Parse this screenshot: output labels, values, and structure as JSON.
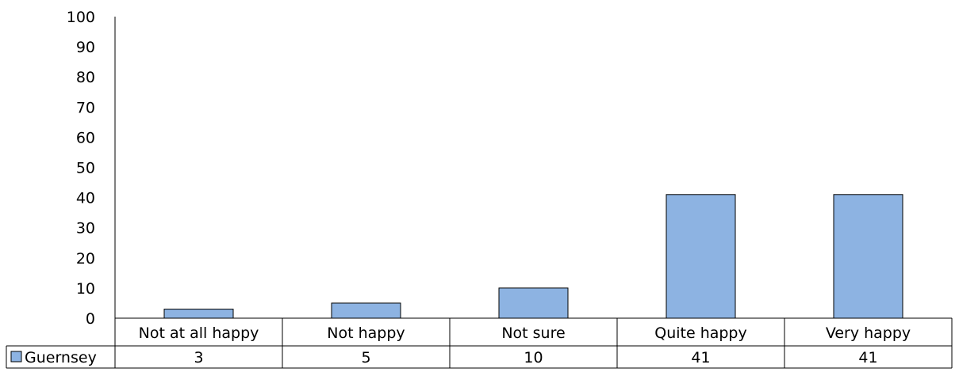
{
  "chart_data": {
    "type": "bar",
    "categories": [
      "Not at all happy",
      "Not happy",
      "Not sure",
      "Quite happy",
      "Very happy"
    ],
    "series": [
      {
        "name": "Guernsey",
        "values": [
          3,
          5,
          10,
          41,
          41
        ],
        "color": "#8db3e2"
      }
    ],
    "yticks": [
      "0",
      "10",
      "20",
      "30",
      "40",
      "50",
      "60",
      "70",
      "80",
      "90",
      "100"
    ],
    "ylim": [
      0,
      100
    ],
    "grid": false,
    "legend": "data-table"
  }
}
